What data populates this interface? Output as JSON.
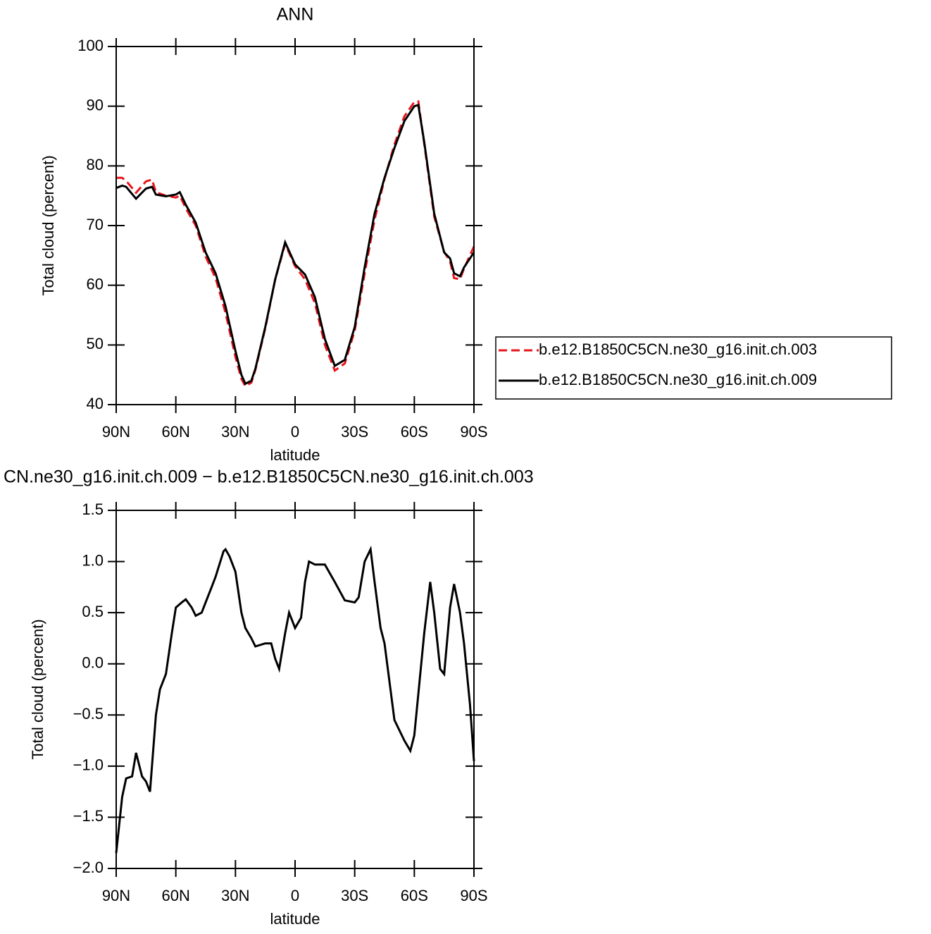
{
  "chart_data": [
    {
      "type": "line",
      "title": "ANN",
      "xlabel": "latitude",
      "ylabel": "Total cloud (percent)",
      "x": [
        90,
        87,
        85,
        80,
        75,
        72,
        70,
        65,
        60,
        58,
        55,
        50,
        45,
        40,
        35,
        30,
        27,
        25,
        22,
        20,
        15,
        10,
        5,
        0,
        -5,
        -10,
        -15,
        -20,
        -25,
        -30,
        -35,
        -40,
        -45,
        -50,
        -55,
        -60,
        -62,
        -65,
        -70,
        -75,
        -78,
        -80,
        -83,
        -85,
        -90
      ],
      "series": [
        {
          "name": "b.e12.B1850C5CN.ne30_g16.init.ch.003",
          "color": "#e8141c",
          "line_style": "dashed",
          "values": [
            78,
            78,
            77.5,
            75.5,
            77.4,
            77.7,
            75.6,
            75,
            74.7,
            75,
            72.9,
            70,
            64.8,
            61.2,
            55.4,
            48,
            44.3,
            43.1,
            43.7,
            45.8,
            52.8,
            61,
            66.9,
            63.2,
            61,
            57,
            50,
            45.7,
            46.9,
            52.4,
            62,
            71,
            77.8,
            83.6,
            88.3,
            90.7,
            90.8,
            83.7,
            71.5,
            65.6,
            64,
            61.2,
            61,
            62.8,
            66.5
          ]
        },
        {
          "name": "b.e12.B1850C5CN.ne30_g16.init.ch.009",
          "color": "#000000",
          "line_style": "solid",
          "values": [
            76.3,
            76.7,
            76.5,
            74.5,
            76.2,
            76.5,
            75.2,
            74.9,
            75.2,
            75.6,
            73.5,
            70.5,
            65.5,
            62.0,
            56.5,
            49,
            45,
            43.5,
            44,
            46,
            53,
            61,
            67.2,
            63.5,
            61.8,
            58,
            51,
            46.5,
            47.5,
            53,
            63,
            72,
            78,
            83,
            87.5,
            90,
            90.2,
            84,
            72,
            65.5,
            64.5,
            62,
            61.5,
            63,
            65.5
          ]
        }
      ],
      "xlim": [
        90,
        -90
      ],
      "xticks": [
        {
          "value": 90,
          "label": "90N"
        },
        {
          "value": 60,
          "label": "60N"
        },
        {
          "value": 30,
          "label": "30N"
        },
        0,
        {
          "value": -30,
          "label": "30S"
        },
        {
          "value": -60,
          "label": "60S"
        },
        {
          "value": -90,
          "label": "90S"
        }
      ],
      "ylim": [
        40,
        100
      ],
      "yticks": [
        40,
        50,
        60,
        70,
        80,
        90,
        100
      ],
      "legend": "right"
    },
    {
      "type": "line",
      "title": "CN.ne30_g16.init.ch.009 − b.e12.B1850C5CN.ne30_g16.init.ch.003",
      "xlabel": "latitude",
      "ylabel": "Total cloud (percent)",
      "x": [
        90,
        87,
        85,
        82,
        80,
        77,
        75,
        73,
        70,
        68,
        65,
        62,
        60,
        57,
        55,
        52,
        50,
        47,
        45,
        42,
        40,
        36,
        35,
        33,
        30,
        27,
        25,
        22,
        20,
        15,
        12,
        10,
        8,
        5,
        3,
        0,
        -3,
        -5,
        -7,
        -10,
        -15,
        -20,
        -25,
        -30,
        -32,
        -35,
        -38,
        -40,
        -43,
        -45,
        -50,
        -55,
        -58,
        -60,
        -65,
        -68,
        -70,
        -73,
        -75,
        -78,
        -80,
        -83,
        -85,
        -88,
        -90
      ],
      "series": [
        {
          "color": "#000000",
          "line_style": "solid",
          "values": [
            -1.85,
            -1.3,
            -1.12,
            -1.1,
            -0.87,
            -1.1,
            -1.15,
            -1.25,
            -0.5,
            -0.25,
            -0.1,
            0.3,
            0.55,
            0.6,
            0.63,
            0.55,
            0.47,
            0.5,
            0.6,
            0.75,
            0.85,
            1.1,
            1.12,
            1.05,
            0.9,
            0.5,
            0.35,
            0.25,
            0.17,
            0.2,
            0.2,
            0.05,
            -0.05,
            0.3,
            0.5,
            0.35,
            0.45,
            0.8,
            1.0,
            0.97,
            0.97,
            0.8,
            0.62,
            0.6,
            0.65,
            1.0,
            1.12,
            0.8,
            0.35,
            0.2,
            -0.55,
            -0.75,
            -0.85,
            -0.7,
            0.3,
            0.8,
            0.5,
            -0.05,
            -0.1,
            0.55,
            0.78,
            0.5,
            0.2,
            -0.4,
            -0.95
          ]
        }
      ],
      "xlim": [
        90,
        -90
      ],
      "xticks": [
        {
          "value": 90,
          "label": "90N"
        },
        {
          "value": 60,
          "label": "60N"
        },
        {
          "value": 30,
          "label": "30N"
        },
        0,
        {
          "value": -30,
          "label": "30S"
        },
        {
          "value": -60,
          "label": "60S"
        },
        {
          "value": -90,
          "label": "90S"
        }
      ],
      "ylim": [
        -2.0,
        1.5
      ],
      "yticks": [
        {
          "value": -2.0,
          "label": "−2.0"
        },
        {
          "value": -1.5,
          "label": "−1.5"
        },
        {
          "value": -1.0,
          "label": "−1.0"
        },
        {
          "value": -0.5,
          "label": "−0.5"
        },
        {
          "value": 0,
          "label": "0.0"
        },
        0.5,
        {
          "value": 1.0,
          "label": "1.0"
        },
        1.5
      ]
    }
  ]
}
